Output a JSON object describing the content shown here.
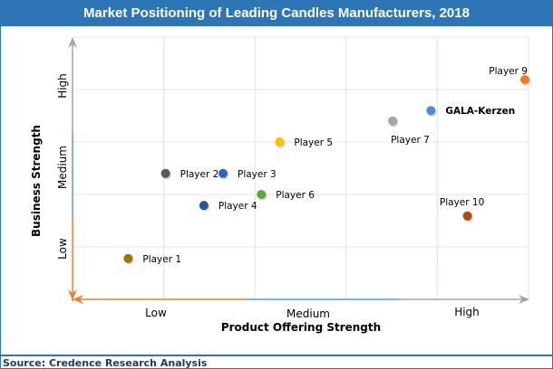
{
  "title": "Market Positioning of Leading Candles Manufacturers, 2018",
  "source": "Source: Credence Research Analysis",
  "chart_data": {
    "type": "scatter",
    "title": "Market Positioning of Leading Candles Manufacturers, 2018",
    "xlabel": "Product Offering Strength",
    "ylabel": "Business Strength",
    "xlim": [
      0,
      5
    ],
    "ylim": [
      0,
      5
    ],
    "grid": true,
    "x_tick_labels": [
      "Low",
      "Medium",
      "High"
    ],
    "y_tick_labels": [
      "Low",
      "Medium",
      "High"
    ],
    "axis_segment_colors": {
      "low": "#ed7d31",
      "medium": "#5b9bd5",
      "high": "#a5a5a5"
    },
    "points": [
      {
        "name": "Player 1",
        "x": 0.61,
        "y": 0.78,
        "color": "#a07400",
        "bold": false
      },
      {
        "name": "Player 2",
        "x": 1.02,
        "y": 2.4,
        "color": "#595959",
        "bold": false
      },
      {
        "name": "Player 3",
        "x": 1.65,
        "y": 2.4,
        "color": "#2e64c8",
        "bold": false
      },
      {
        "name": "Player 4",
        "x": 1.44,
        "y": 1.79,
        "color": "#1f5a96",
        "bold": false
      },
      {
        "name": "Player 5",
        "x": 2.27,
        "y": 3.0,
        "color": "#ffc000",
        "bold": false
      },
      {
        "name": "Player 6",
        "x": 2.07,
        "y": 2.0,
        "color": "#5fa83c",
        "bold": false
      },
      {
        "name": "Player 7",
        "x": 3.51,
        "y": 3.4,
        "color": "#a5a5a5",
        "bold": false
      },
      {
        "name": "GALA-Kerzen",
        "x": 3.93,
        "y": 3.6,
        "color": "#4a90d9",
        "bold": true
      },
      {
        "name": "Player 9",
        "x": 4.96,
        "y": 4.19,
        "color": "#f07820",
        "bold": false
      },
      {
        "name": "Player 10",
        "x": 4.33,
        "y": 1.59,
        "color": "#b04a08",
        "bold": false
      }
    ]
  }
}
